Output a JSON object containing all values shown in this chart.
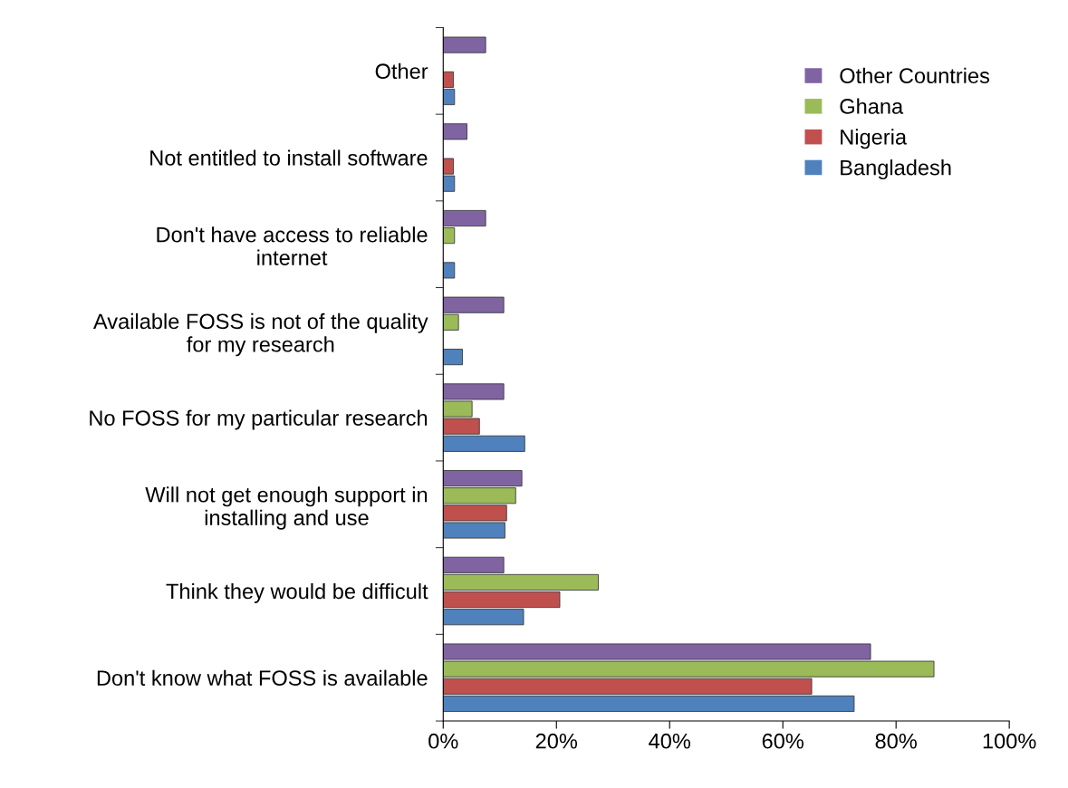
{
  "chart_data": {
    "type": "bar",
    "orientation": "horizontal",
    "categories": [
      "Other",
      "Not entitled to install software",
      "Don't have access to reliable\ninternet",
      "Available FOSS is not of the quality\nfor my research",
      "No FOSS for my particular research",
      "Will not get enough support in\ninstalling and use",
      "Think they would be difficult",
      "Don't know what FOSS is available"
    ],
    "series": [
      {
        "name": "Bangladesh",
        "color": "#4f81bd",
        "values": [
          2,
          2,
          2,
          3.4,
          14.4,
          10.9,
          14.2,
          72.6
        ]
      },
      {
        "name": "Nigeria",
        "color": "#c0504d",
        "values": [
          1.8,
          1.8,
          null,
          null,
          6.4,
          11.2,
          20.6,
          65.1
        ]
      },
      {
        "name": "Ghana",
        "color": "#9bbb59",
        "values": [
          null,
          null,
          2,
          2.7,
          5.1,
          12.8,
          27.4,
          86.7
        ]
      },
      {
        "name": "Other Countries",
        "color": "#8064a2",
        "values": [
          7.5,
          4.2,
          7.5,
          10.7,
          10.7,
          13.9,
          10.7,
          75.5
        ]
      }
    ],
    "xlim": [
      0,
      100
    ],
    "xticks": [
      {
        "value": 0,
        "label": "0%"
      },
      {
        "value": 20,
        "label": "20%"
      },
      {
        "value": 40,
        "label": "40%"
      },
      {
        "value": 60,
        "label": "60%"
      },
      {
        "value": 80,
        "label": "80%"
      },
      {
        "value": 100,
        "label": "100%"
      }
    ],
    "grid": false,
    "legend": "top right"
  }
}
